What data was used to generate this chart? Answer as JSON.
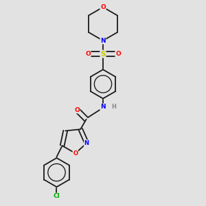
{
  "background_color": "#e2e2e2",
  "bond_color": "#1a1a1a",
  "atom_colors": {
    "O": "#ff0000",
    "N": "#0000ff",
    "S": "#cccc00",
    "Cl": "#00aa00",
    "H": "#888888",
    "C": "#1a1a1a"
  },
  "figsize": [
    3.0,
    3.0
  ],
  "dpi": 100
}
